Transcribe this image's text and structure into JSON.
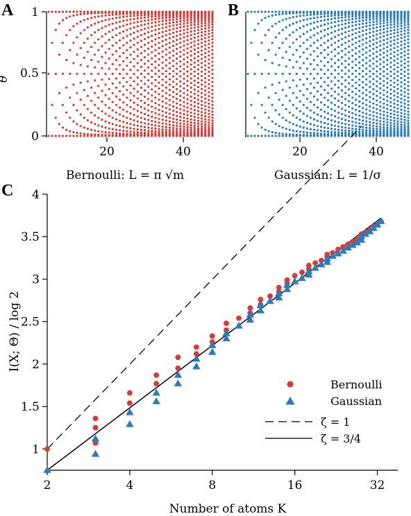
{
  "colors": {
    "bernoulli": "#d93a35",
    "gaussian": "#2b7bc1",
    "axis": "#000000"
  },
  "chart_data": [
    {
      "type": "scatter",
      "panel": "A",
      "caption": "Bernoulli: L = π √m",
      "ylabel": "θ",
      "xlim": [
        3,
        49
      ],
      "ylim": [
        0,
        1
      ],
      "xticks": [
        "20",
        "40"
      ],
      "yticks": [
        "0",
        "0.5",
        "1"
      ],
      "x_range": [
        3,
        49
      ],
      "description_of_points": "for each K (3..49) points at θ = (1 - cos(π j/(K-1)))/2, j = 0..K-1"
    },
    {
      "type": "scatter",
      "panel": "B",
      "caption": "Gaussian: L = 1/σ",
      "xlim": [
        3,
        49
      ],
      "ylim": [
        0,
        1
      ],
      "xticks": [
        "20",
        "40"
      ],
      "x_range": [
        3,
        49
      ]
    },
    {
      "type": "scatter",
      "panel": "C",
      "xlabel": "Number of atoms K",
      "ylabel": "I(X; Θ) / log 2",
      "xscale": "log2",
      "xlim": [
        2,
        38
      ],
      "ylim": [
        0.75,
        4
      ],
      "xticks": [
        "2",
        "4",
        "8",
        "16",
        "32"
      ],
      "yticks": [
        "1",
        "1.5",
        "2",
        "2.5",
        "3",
        "3.5",
        "4"
      ],
      "series": [
        {
          "name": "Bernoulli",
          "marker": "hexagon",
          "points": [
            [
              2,
              1.0
            ],
            [
              3,
              1.07
            ],
            [
              3,
              1.25
            ],
            [
              3,
              1.36
            ],
            [
              4,
              1.54
            ],
            [
              4,
              1.66
            ],
            [
              5,
              1.77
            ],
            [
              5,
              1.87
            ],
            [
              6,
              1.95
            ],
            [
              6,
              2.08
            ],
            [
              7,
              2.12
            ],
            [
              7,
              2.2
            ],
            [
              8,
              2.26
            ],
            [
              8,
              2.33
            ],
            [
              9,
              2.4
            ],
            [
              9,
              2.48
            ],
            [
              10,
              2.54
            ],
            [
              11,
              2.6
            ],
            [
              11,
              2.66
            ],
            [
              12,
              2.7
            ],
            [
              12,
              2.76
            ],
            [
              13,
              2.8
            ],
            [
              14,
              2.85
            ],
            [
              14,
              2.9
            ],
            [
              15,
              2.95
            ],
            [
              15,
              2.99
            ],
            [
              16,
              3.04
            ],
            [
              17,
              3.08
            ],
            [
              18,
              3.12
            ],
            [
              18,
              3.16
            ],
            [
              19,
              3.19
            ],
            [
              20,
              3.22
            ],
            [
              21,
              3.26
            ],
            [
              21,
              3.29
            ],
            [
              22,
              3.31
            ],
            [
              23,
              3.35
            ],
            [
              24,
              3.38
            ],
            [
              25,
              3.41
            ],
            [
              26,
              3.44
            ],
            [
              27,
              3.47
            ],
            [
              28,
              3.5
            ],
            [
              28,
              3.53
            ],
            [
              29,
              3.55
            ],
            [
              30,
              3.58
            ],
            [
              31,
              3.62
            ],
            [
              32,
              3.65
            ],
            [
              33,
              3.68
            ]
          ]
        },
        {
          "name": "Gaussian",
          "marker": "triangle",
          "points": [
            [
              2,
              0.75
            ],
            [
              3,
              0.94
            ],
            [
              3,
              1.12
            ],
            [
              4,
              1.29
            ],
            [
              4,
              1.43
            ],
            [
              5,
              1.56
            ],
            [
              5,
              1.66
            ],
            [
              6,
              1.77
            ],
            [
              6,
              1.87
            ],
            [
              7,
              1.97
            ],
            [
              7,
              2.06
            ],
            [
              8,
              2.14
            ],
            [
              8,
              2.22
            ],
            [
              9,
              2.3
            ],
            [
              9,
              2.36
            ],
            [
              10,
              2.45
            ],
            [
              11,
              2.52
            ],
            [
              11,
              2.58
            ],
            [
              12,
              2.63
            ],
            [
              12,
              2.69
            ],
            [
              13,
              2.74
            ],
            [
              14,
              2.78
            ],
            [
              14,
              2.83
            ],
            [
              15,
              2.88
            ],
            [
              15,
              2.93
            ],
            [
              16,
              2.97
            ],
            [
              17,
              3.01
            ],
            [
              18,
              3.05
            ],
            [
              18,
              3.09
            ],
            [
              19,
              3.13
            ],
            [
              20,
              3.17
            ],
            [
              21,
              3.2
            ],
            [
              21,
              3.24
            ],
            [
              22,
              3.27
            ],
            [
              23,
              3.3
            ],
            [
              24,
              3.33
            ],
            [
              25,
              3.37
            ],
            [
              26,
              3.4
            ],
            [
              27,
              3.43
            ],
            [
              28,
              3.46
            ],
            [
              28,
              3.5
            ],
            [
              29,
              3.53
            ],
            [
              30,
              3.56
            ],
            [
              31,
              3.6
            ],
            [
              32,
              3.64
            ],
            [
              33,
              3.68
            ]
          ]
        },
        {
          "name": "ζ = 1",
          "style": "dashed",
          "line": [
            [
              2,
              1.0
            ],
            [
              28,
              4.8
            ]
          ]
        },
        {
          "name": "ζ = 3/4",
          "style": "solid",
          "line": [
            [
              2,
              0.75
            ],
            [
              33,
              3.72
            ]
          ]
        }
      ],
      "legend": "right"
    }
  ]
}
